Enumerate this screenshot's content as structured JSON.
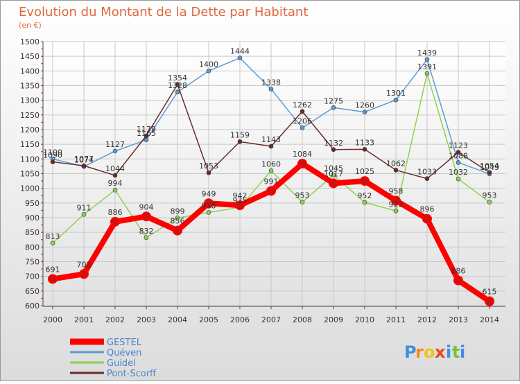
{
  "chart_data": {
    "type": "line",
    "title": "Evolution du Montant de la Dette par Habitant",
    "subtitle": "(en €)",
    "x": [
      "2000",
      "2001",
      "2002",
      "2003",
      "2004",
      "2005",
      "2006",
      "2007",
      "2008",
      "2009",
      "2010",
      "2011",
      "2012",
      "2013",
      "2014"
    ],
    "yticks": [
      600,
      650,
      700,
      750,
      800,
      850,
      900,
      950,
      1000,
      1050,
      1100,
      1150,
      1200,
      1250,
      1300,
      1350,
      1400,
      1450,
      1500
    ],
    "ylim": [
      600,
      1500
    ],
    "grid": true,
    "legend_position": "bottom-left",
    "series": [
      {
        "name": "Quéven",
        "color": "#5b9bd5",
        "values": [
          1100,
          1074,
          1127,
          1165,
          1328,
          1400,
          1444,
          1338,
          1206,
          1275,
          1260,
          1301,
          1439,
          1088,
          1049
        ]
      },
      {
        "name": "Guidel",
        "color": "#8fd14f",
        "values": [
          813,
          911,
          994,
          832,
          899,
          918,
          935,
          1060,
          953,
          1045,
          952,
          923,
          1391,
          1032,
          953
        ]
      },
      {
        "name": "Pont-Scorff",
        "color": "#6b2a2a",
        "values": [
          1090,
          1077,
          1044,
          1179,
          1354,
          1053,
          1159,
          1143,
          1262,
          1132,
          1133,
          1062,
          1033,
          1123,
          1054
        ]
      },
      {
        "name": "GESTEL",
        "color": "#ff0000",
        "values": [
          691,
          708,
          886,
          904,
          856,
          949,
          942,
          991,
          1084,
          1017,
          1025,
          958,
          896,
          686,
          615
        ]
      }
    ]
  },
  "brand": {
    "text": "Proxiti",
    "letters": [
      "P",
      "r",
      "o",
      "x",
      "i",
      "t",
      "i"
    ],
    "colors": [
      "#3d8fe0",
      "#f28c1c",
      "#f2c21c",
      "#e8451c",
      "#3d8fe0",
      "#7abf3a",
      "#3d8fe0"
    ]
  }
}
